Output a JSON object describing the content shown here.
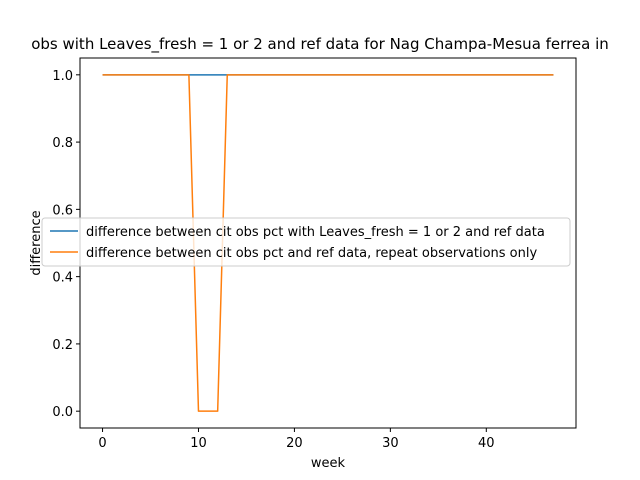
{
  "chart_data": {
    "type": "line",
    "title": "obs with Leaves_fresh = 1 or 2 and ref data for Nag Champa-Mesua ferrea in",
    "xlabel": "week",
    "ylabel": "difference",
    "xlim": [
      -2.35,
      49.35
    ],
    "ylim": [
      -0.05,
      1.05
    ],
    "xticks": [
      0,
      10,
      20,
      30,
      40
    ],
    "yticks": [
      0.0,
      0.2,
      0.4,
      0.6,
      0.8,
      1.0
    ],
    "grid": false,
    "legend_position": "center-right",
    "series": [
      {
        "name": "difference between cit obs pct with Leaves_fresh = 1 or 2 and ref data",
        "color": "#1f77b4",
        "x": [
          0,
          1,
          2,
          3,
          4,
          5,
          6,
          7,
          8,
          9,
          10,
          11,
          12,
          13,
          14,
          15,
          16,
          17,
          18,
          19,
          20,
          21,
          22,
          23,
          24,
          25,
          26,
          27,
          28,
          29,
          30,
          31,
          32,
          33,
          34,
          35,
          36,
          37,
          38,
          39,
          40,
          41,
          42,
          43,
          44,
          45,
          46,
          47
        ],
        "y": [
          1,
          1,
          1,
          1,
          1,
          1,
          1,
          1,
          1,
          1,
          1,
          1,
          1,
          1,
          1,
          1,
          1,
          1,
          1,
          1,
          1,
          1,
          1,
          1,
          1,
          1,
          1,
          1,
          1,
          1,
          1,
          1,
          1,
          1,
          1,
          1,
          1,
          1,
          1,
          1,
          1,
          1,
          1,
          1,
          1,
          1,
          1,
          1
        ]
      },
      {
        "name": "difference between cit obs pct and ref data, repeat observations only",
        "color": "#ff7f0e",
        "x": [
          0,
          1,
          2,
          3,
          4,
          5,
          6,
          7,
          8,
          9,
          10,
          11,
          12,
          13,
          14,
          15,
          16,
          17,
          18,
          19,
          20,
          21,
          22,
          23,
          24,
          25,
          26,
          27,
          28,
          29,
          30,
          31,
          32,
          33,
          34,
          35,
          36,
          37,
          38,
          39,
          40,
          41,
          42,
          43,
          44,
          45,
          46,
          47
        ],
        "y": [
          1,
          1,
          1,
          1,
          1,
          1,
          1,
          1,
          1,
          1,
          0,
          0,
          0,
          1,
          1,
          1,
          1,
          1,
          1,
          1,
          1,
          1,
          1,
          1,
          1,
          1,
          1,
          1,
          1,
          1,
          1,
          1,
          1,
          1,
          1,
          1,
          1,
          1,
          1,
          1,
          1,
          1,
          1,
          1,
          1,
          1,
          1,
          1
        ]
      }
    ]
  }
}
